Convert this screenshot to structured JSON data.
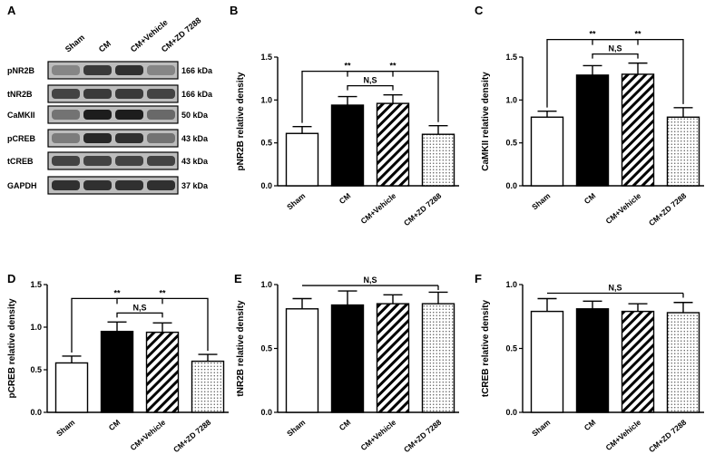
{
  "panels": [
    {
      "letter": "A"
    },
    {
      "letter": "B"
    },
    {
      "letter": "C"
    },
    {
      "letter": "D"
    },
    {
      "letter": "E"
    },
    {
      "letter": "F"
    }
  ],
  "blot": {
    "lanes": [
      "Sham",
      "CM",
      "CM+Vehicle",
      "CM+ZD 7288"
    ],
    "rows": [
      {
        "protein": "pNR2B",
        "size": "166 kDa"
      },
      {
        "protein": "tNR2B",
        "size": "166 kDa"
      },
      {
        "protein": "CaMKII",
        "size": "50 kDa"
      },
      {
        "protein": "pCREB",
        "size": "43 kDa"
      },
      {
        "protein": "tCREB",
        "size": "43 kDa"
      },
      {
        "protein": "GAPDH",
        "size": "37 kDa"
      }
    ]
  },
  "chart_data": [
    {
      "panel": "B",
      "type": "bar",
      "categories": [
        "Sham",
        "CM",
        "CM+Vehicle",
        "CM+ZD 7288"
      ],
      "values": [
        0.61,
        0.94,
        0.96,
        0.6
      ],
      "errors": [
        0.08,
        0.1,
        0.1,
        0.1
      ],
      "ylabel": "pNR2B relative density",
      "ylim": [
        0,
        1.5
      ],
      "yticks": [
        "0.0",
        "0.5",
        "1.0",
        "1.5"
      ],
      "fills": [
        "white",
        "black",
        "hatch",
        "dots"
      ],
      "sig": [
        {
          "from": 0,
          "to": 2,
          "label": "**"
        },
        {
          "from": 1,
          "to": 2,
          "label": "N,S"
        },
        {
          "from": 1,
          "to": 3,
          "label": "**"
        }
      ]
    },
    {
      "panel": "C",
      "type": "bar",
      "categories": [
        "Sham",
        "CM",
        "CM+Vehicle",
        "CM+ZD 7288"
      ],
      "values": [
        0.8,
        1.29,
        1.3,
        0.8
      ],
      "errors": [
        0.07,
        0.11,
        0.13,
        0.11
      ],
      "ylabel": "CaMKII relative density",
      "ylim": [
        0,
        1.5
      ],
      "yticks": [
        "0.0",
        "0.5",
        "1.0",
        "1.5"
      ],
      "fills": [
        "white",
        "black",
        "hatch",
        "dots"
      ],
      "sig": [
        {
          "from": 0,
          "to": 2,
          "label": "**"
        },
        {
          "from": 1,
          "to": 2,
          "label": "N,S"
        },
        {
          "from": 1,
          "to": 3,
          "label": "**"
        }
      ]
    },
    {
      "panel": "D",
      "type": "bar",
      "categories": [
        "Sham",
        "CM",
        "CM+Vehicle",
        "CM+ZD 7288"
      ],
      "values": [
        0.58,
        0.95,
        0.94,
        0.6
      ],
      "errors": [
        0.08,
        0.11,
        0.11,
        0.08
      ],
      "ylabel": "pCREB relative density",
      "ylim": [
        0,
        1.5
      ],
      "yticks": [
        "0.0",
        "0.5",
        "1.0",
        "1.5"
      ],
      "fills": [
        "white",
        "black",
        "hatch",
        "dots"
      ],
      "sig": [
        {
          "from": 0,
          "to": 2,
          "label": "**"
        },
        {
          "from": 1,
          "to": 2,
          "label": "N,S"
        },
        {
          "from": 1,
          "to": 3,
          "label": "**"
        }
      ]
    },
    {
      "panel": "E",
      "type": "bar",
      "categories": [
        "Sham",
        "CM",
        "CM+Vehicle",
        "CM+ZD 7288"
      ],
      "values": [
        0.81,
        0.84,
        0.85,
        0.85
      ],
      "errors": [
        0.08,
        0.11,
        0.07,
        0.09
      ],
      "ylabel": "tNR2B relative density",
      "ylim": [
        0,
        1.0
      ],
      "yticks": [
        "0.0",
        "0.5",
        "1.0"
      ],
      "fills": [
        "white",
        "black",
        "hatch",
        "dots"
      ],
      "sig": [
        {
          "from": 0,
          "to": 3,
          "label": "N,S"
        }
      ]
    },
    {
      "panel": "F",
      "type": "bar",
      "categories": [
        "Sham",
        "CM",
        "CM+Vehicle",
        "CM+ZD 7288"
      ],
      "values": [
        0.79,
        0.81,
        0.79,
        0.78
      ],
      "errors": [
        0.1,
        0.06,
        0.06,
        0.08
      ],
      "ylabel": "tCREB relative density",
      "ylim": [
        0,
        1.0
      ],
      "yticks": [
        "0.0",
        "0.5",
        "1.0"
      ],
      "fills": [
        "white",
        "black",
        "hatch",
        "dots"
      ],
      "sig": [
        {
          "from": 0,
          "to": 3,
          "label": "N,S"
        }
      ]
    }
  ]
}
